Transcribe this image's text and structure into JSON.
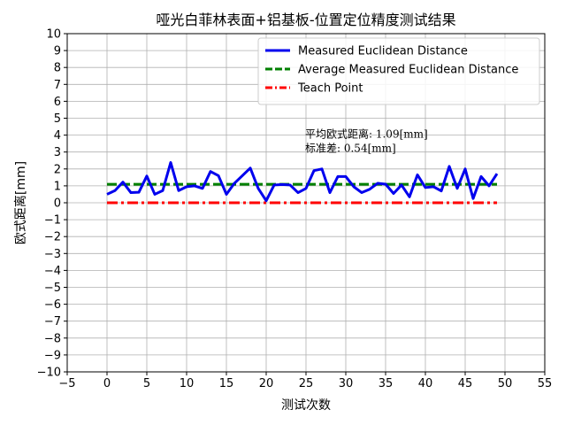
{
  "chart_data": {
    "type": "line",
    "title": "哑光白菲林表面+铝基板-位置定位精度测试结果",
    "xlabel": "测试次数",
    "ylabel": "欧式距离[mm]",
    "xlim": [
      -5,
      55
    ],
    "ylim": [
      -10,
      10
    ],
    "xticks": [
      -5,
      0,
      5,
      10,
      15,
      20,
      25,
      30,
      35,
      40,
      45,
      50,
      55
    ],
    "yticks": [
      -10,
      -9,
      -8,
      -7,
      -6,
      -5,
      -4,
      -3,
      -2,
      -1,
      0,
      1,
      2,
      3,
      4,
      5,
      6,
      7,
      8,
      9,
      10
    ],
    "grid": true,
    "legend_position": "upper-right",
    "x": [
      0,
      1,
      2,
      3,
      4,
      5,
      6,
      7,
      8,
      9,
      10,
      11,
      12,
      13,
      14,
      15,
      16,
      17,
      18,
      19,
      20,
      21,
      22,
      23,
      24,
      25,
      26,
      27,
      28,
      29,
      30,
      31,
      32,
      33,
      34,
      35,
      36,
      37,
      38,
      39,
      40,
      41,
      42,
      43,
      44,
      45,
      46,
      47,
      48,
      49
    ],
    "series": [
      {
        "name": "Measured Euclidean Distance",
        "color": "#0000ee",
        "style": "solid",
        "values": [
          0.5,
          0.72,
          1.22,
          0.6,
          0.62,
          1.58,
          0.5,
          0.72,
          2.38,
          0.72,
          0.95,
          1.0,
          0.85,
          1.85,
          1.6,
          0.5,
          1.15,
          1.6,
          2.05,
          0.85,
          0.12,
          1.05,
          1.08,
          1.05,
          0.6,
          0.85,
          1.9,
          2.0,
          0.6,
          1.55,
          1.55,
          0.95,
          0.6,
          0.8,
          1.15,
          1.1,
          0.55,
          1.05,
          0.35,
          1.65,
          0.9,
          0.95,
          0.7,
          2.15,
          0.85,
          2.0,
          0.25,
          1.55,
          1.0,
          1.72
        ]
      },
      {
        "name": "Average Measured Euclidean Distance",
        "color": "#008000",
        "style": "dashed",
        "values": [
          1.09,
          1.09,
          1.09,
          1.09,
          1.09,
          1.09,
          1.09,
          1.09,
          1.09,
          1.09,
          1.09,
          1.09,
          1.09,
          1.09,
          1.09,
          1.09,
          1.09,
          1.09,
          1.09,
          1.09,
          1.09,
          1.09,
          1.09,
          1.09,
          1.09,
          1.09,
          1.09,
          1.09,
          1.09,
          1.09,
          1.09,
          1.09,
          1.09,
          1.09,
          1.09,
          1.09,
          1.09,
          1.09,
          1.09,
          1.09,
          1.09,
          1.09,
          1.09,
          1.09,
          1.09,
          1.09,
          1.09,
          1.09,
          1.09,
          1.09
        ]
      },
      {
        "name": "Teach Point",
        "color": "#ff0000",
        "style": "dashdot",
        "values": [
          0,
          0,
          0,
          0,
          0,
          0,
          0,
          0,
          0,
          0,
          0,
          0,
          0,
          0,
          0,
          0,
          0,
          0,
          0,
          0,
          0,
          0,
          0,
          0,
          0,
          0,
          0,
          0,
          0,
          0,
          0,
          0,
          0,
          0,
          0,
          0,
          0,
          0,
          0,
          0,
          0,
          0,
          0,
          0,
          0,
          0,
          0,
          0,
          0,
          0
        ]
      }
    ],
    "annotations": [
      {
        "text": "平均欧式距离: 1.09[mm]",
        "x": 25,
        "y": 3.85
      },
      {
        "text": "标准差: 0.54[mm]",
        "x": 25,
        "y": 3.0
      }
    ]
  }
}
